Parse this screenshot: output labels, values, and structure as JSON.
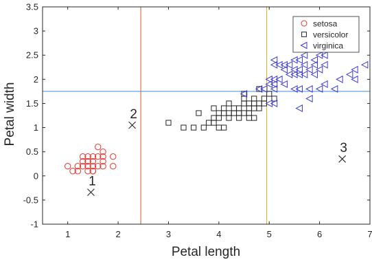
{
  "chart_data": {
    "type": "scatter",
    "xlabel": "Petal length",
    "ylabel": "Petal width",
    "xlim": [
      0.5,
      7
    ],
    "ylim": [
      -1,
      3.5
    ],
    "xticks": [
      "1",
      "2",
      "3",
      "4",
      "5",
      "6",
      "7"
    ],
    "yticks": [
      "-1",
      "-0.5",
      "0",
      "0.5",
      "1",
      "1.5",
      "2",
      "2.5",
      "3",
      "3.5"
    ],
    "grid": false,
    "legend_position": "top-right",
    "series": [
      {
        "name": "setosa",
        "marker": "circle",
        "color": "#e8322c",
        "points": [
          [
            1.0,
            0.2
          ],
          [
            1.1,
            0.1
          ],
          [
            1.2,
            0.2
          ],
          [
            1.2,
            0.1
          ],
          [
            1.3,
            0.2
          ],
          [
            1.3,
            0.3
          ],
          [
            1.3,
            0.4
          ],
          [
            1.4,
            0.1
          ],
          [
            1.4,
            0.2
          ],
          [
            1.4,
            0.3
          ],
          [
            1.4,
            0.4
          ],
          [
            1.5,
            0.1
          ],
          [
            1.5,
            0.2
          ],
          [
            1.5,
            0.3
          ],
          [
            1.5,
            0.4
          ],
          [
            1.6,
            0.2
          ],
          [
            1.6,
            0.4
          ],
          [
            1.6,
            0.6
          ],
          [
            1.7,
            0.2
          ],
          [
            1.7,
            0.3
          ],
          [
            1.7,
            0.4
          ],
          [
            1.7,
            0.5
          ],
          [
            1.9,
            0.2
          ],
          [
            1.9,
            0.4
          ],
          [
            1.4,
            0.3
          ],
          [
            1.5,
            0.1
          ]
        ]
      },
      {
        "name": "versicolor",
        "marker": "square",
        "color": "#222222",
        "points": [
          [
            3.0,
            1.1
          ],
          [
            3.3,
            1.0
          ],
          [
            3.5,
            1.0
          ],
          [
            3.6,
            1.3
          ],
          [
            3.7,
            1.0
          ],
          [
            3.8,
            1.1
          ],
          [
            3.9,
            1.1
          ],
          [
            3.9,
            1.2
          ],
          [
            3.9,
            1.4
          ],
          [
            4.0,
            1.0
          ],
          [
            4.0,
            1.2
          ],
          [
            4.0,
            1.3
          ],
          [
            4.1,
            1.0
          ],
          [
            4.1,
            1.3
          ],
          [
            4.2,
            1.2
          ],
          [
            4.2,
            1.3
          ],
          [
            4.2,
            1.5
          ],
          [
            4.3,
            1.3
          ],
          [
            4.4,
            1.2
          ],
          [
            4.4,
            1.3
          ],
          [
            4.4,
            1.4
          ],
          [
            4.5,
            1.3
          ],
          [
            4.5,
            1.5
          ],
          [
            4.5,
            1.7
          ],
          [
            4.6,
            1.3
          ],
          [
            4.6,
            1.4
          ],
          [
            4.6,
            1.5
          ],
          [
            4.7,
            1.2
          ],
          [
            4.7,
            1.4
          ],
          [
            4.7,
            1.5
          ],
          [
            4.7,
            1.6
          ],
          [
            4.8,
            1.4
          ],
          [
            4.8,
            1.8
          ],
          [
            4.9,
            1.5
          ],
          [
            5.0,
            1.7
          ],
          [
            5.1,
            1.6
          ],
          [
            4.5,
            1.6
          ],
          [
            4.8,
            1.5
          ],
          [
            4.9,
            1.6
          ],
          [
            4.6,
            1.2
          ],
          [
            4.3,
            1.4
          ],
          [
            4.1,
            1.4
          ]
        ]
      },
      {
        "name": "virginica",
        "marker": "triangle-left",
        "color": "#3b3bd6",
        "points": [
          [
            4.5,
            1.7
          ],
          [
            4.8,
            1.8
          ],
          [
            4.9,
            1.8
          ],
          [
            5.0,
            1.5
          ],
          [
            5.0,
            2.0
          ],
          [
            5.0,
            1.9
          ],
          [
            5.1,
            1.5
          ],
          [
            5.1,
            1.8
          ],
          [
            5.1,
            1.9
          ],
          [
            5.1,
            2.0
          ],
          [
            5.1,
            2.3
          ],
          [
            5.1,
            2.4
          ],
          [
            5.2,
            2.0
          ],
          [
            5.2,
            2.3
          ],
          [
            5.3,
            1.9
          ],
          [
            5.3,
            2.3
          ],
          [
            5.4,
            2.1
          ],
          [
            5.4,
            2.3
          ],
          [
            5.5,
            1.8
          ],
          [
            5.5,
            2.1
          ],
          [
            5.6,
            1.4
          ],
          [
            5.6,
            1.8
          ],
          [
            5.6,
            2.1
          ],
          [
            5.6,
            2.2
          ],
          [
            5.6,
            2.4
          ],
          [
            5.7,
            2.1
          ],
          [
            5.7,
            2.3
          ],
          [
            5.7,
            2.5
          ],
          [
            5.8,
            1.6
          ],
          [
            5.8,
            1.8
          ],
          [
            5.8,
            2.2
          ],
          [
            5.9,
            2.1
          ],
          [
            5.9,
            2.3
          ],
          [
            6.0,
            1.8
          ],
          [
            6.0,
            2.5
          ],
          [
            6.1,
            1.9
          ],
          [
            6.1,
            2.3
          ],
          [
            6.1,
            2.5
          ],
          [
            6.3,
            1.8
          ],
          [
            6.4,
            2.0
          ],
          [
            6.6,
            2.1
          ],
          [
            6.7,
            2.0
          ],
          [
            6.7,
            2.2
          ],
          [
            6.9,
            2.3
          ],
          [
            5.5,
            2.2
          ],
          [
            5.9,
            2.4
          ],
          [
            6.0,
            2.2
          ],
          [
            5.3,
            2.2
          ],
          [
            5.5,
            2.4
          ]
        ]
      }
    ],
    "centroids": [
      {
        "label": "1",
        "x": 1.46,
        "y": -0.34
      },
      {
        "label": "2",
        "x": 2.28,
        "y": 1.05
      },
      {
        "label": "3",
        "x": 6.45,
        "y": 0.35
      }
    ],
    "reference_lines": [
      {
        "orientation": "vertical",
        "value": 2.45,
        "color": "#d35a2a"
      },
      {
        "orientation": "vertical",
        "value": 4.95,
        "color": "#e0a81c"
      },
      {
        "orientation": "horizontal",
        "value": 1.75,
        "color": "#3f8fd6"
      }
    ]
  }
}
